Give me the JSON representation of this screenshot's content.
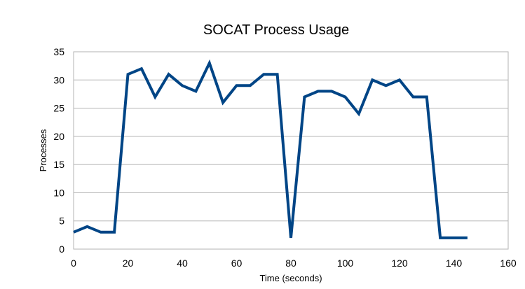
{
  "chart_data": {
    "type": "line",
    "title": "SOCAT Process Usage",
    "xlabel": "Time (seconds)",
    "ylabel": "Processes",
    "xlim": [
      0,
      160
    ],
    "ylim": [
      0,
      35
    ],
    "xticks": [
      0,
      20,
      40,
      60,
      80,
      100,
      120,
      140,
      160
    ],
    "yticks": [
      0,
      5,
      10,
      15,
      20,
      25,
      30,
      35
    ],
    "grid": true,
    "legend": "none",
    "series": [
      {
        "color": "#004586",
        "x": [
          0,
          5,
          10,
          15,
          20,
          25,
          30,
          35,
          40,
          45,
          50,
          55,
          60,
          65,
          70,
          75,
          80,
          85,
          90,
          95,
          100,
          105,
          110,
          115,
          120,
          125,
          130,
          135,
          140,
          145
        ],
        "y": [
          3,
          4,
          3,
          3,
          31,
          32,
          27,
          31,
          29,
          28,
          33,
          26,
          29,
          29,
          31,
          31,
          2,
          27,
          28,
          28,
          27,
          24,
          30,
          29,
          30,
          27,
          27,
          2,
          2,
          2
        ]
      }
    ]
  }
}
